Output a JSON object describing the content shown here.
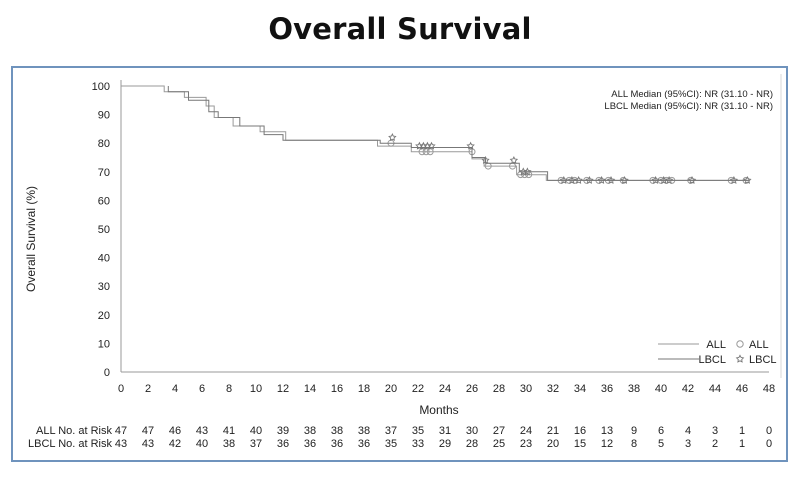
{
  "title": "Overall Survival",
  "chart_data": {
    "type": "line",
    "subtype": "kaplan-meier",
    "title": "Overall Survival",
    "xlabel": "Months",
    "ylabel": "Overall Survival (%)",
    "xlim": [
      0,
      48
    ],
    "ylim": [
      0,
      100
    ],
    "xticks": [
      0,
      2,
      4,
      6,
      8,
      10,
      12,
      14,
      16,
      18,
      20,
      22,
      24,
      26,
      28,
      30,
      32,
      34,
      36,
      38,
      40,
      42,
      44,
      46,
      48
    ],
    "yticks": [
      0,
      10,
      20,
      30,
      40,
      50,
      60,
      70,
      80,
      90,
      100
    ],
    "grid": false,
    "annotations": [
      "ALL Median (95%CI): NR (31.10 - NR)",
      "LBCL Median (95%CI): NR (31.10 - NR)"
    ],
    "legend": {
      "placement": "bottom-right",
      "entries": [
        {
          "line_label": "ALL",
          "marker_label": "ALL"
        },
        {
          "line_label": "LBCL",
          "marker_label": "LBCL"
        }
      ]
    },
    "series": [
      {
        "name": "ALL",
        "color": "#9a9a9a",
        "steps": [
          [
            0,
            100
          ],
          [
            3.2,
            100
          ],
          [
            3.2,
            98
          ],
          [
            4.7,
            98
          ],
          [
            4.7,
            96
          ],
          [
            6.3,
            96
          ],
          [
            6.3,
            93
          ],
          [
            6.9,
            93
          ],
          [
            6.9,
            89
          ],
          [
            8.3,
            89
          ],
          [
            8.3,
            86
          ],
          [
            10.3,
            86
          ],
          [
            10.3,
            84
          ],
          [
            12.2,
            84
          ],
          [
            12.2,
            81
          ],
          [
            19.0,
            81
          ],
          [
            19.0,
            79
          ],
          [
            21.5,
            79
          ],
          [
            21.5,
            77
          ],
          [
            26.0,
            77
          ],
          [
            26.0,
            74.5
          ],
          [
            26.9,
            74.5
          ],
          [
            26.9,
            72
          ],
          [
            29.3,
            72
          ],
          [
            29.3,
            69
          ],
          [
            31.5,
            69
          ],
          [
            31.5,
            67
          ],
          [
            46.5,
            67
          ]
        ],
        "censored": [
          [
            20.0,
            80
          ],
          [
            22.3,
            77
          ],
          [
            22.6,
            77
          ],
          [
            22.9,
            77
          ],
          [
            26.0,
            77
          ],
          [
            27.2,
            72
          ],
          [
            29.0,
            72
          ],
          [
            29.6,
            69
          ],
          [
            29.9,
            69
          ],
          [
            30.2,
            69
          ],
          [
            32.6,
            67
          ],
          [
            33.2,
            67
          ],
          [
            33.6,
            67
          ],
          [
            34.5,
            67
          ],
          [
            35.4,
            67
          ],
          [
            36.1,
            67
          ],
          [
            37.2,
            67
          ],
          [
            39.4,
            67
          ],
          [
            40.0,
            67
          ],
          [
            40.4,
            67
          ],
          [
            40.8,
            67
          ],
          [
            42.2,
            67
          ],
          [
            45.2,
            67
          ],
          [
            46.3,
            67
          ]
        ]
      },
      {
        "name": "LBCL",
        "color": "#777777",
        "steps": [
          [
            3.5,
            100
          ],
          [
            3.5,
            98
          ],
          [
            5.0,
            98
          ],
          [
            5.0,
            95
          ],
          [
            6.5,
            95
          ],
          [
            6.5,
            91
          ],
          [
            7.2,
            91
          ],
          [
            7.2,
            89
          ],
          [
            8.8,
            89
          ],
          [
            8.8,
            86
          ],
          [
            10.6,
            86
          ],
          [
            10.6,
            83
          ],
          [
            12.0,
            83
          ],
          [
            12.0,
            81
          ],
          [
            19.2,
            81
          ],
          [
            19.2,
            80
          ],
          [
            21.5,
            80
          ],
          [
            21.5,
            78.5
          ],
          [
            26.0,
            78.5
          ],
          [
            26.0,
            75
          ],
          [
            27.0,
            75
          ],
          [
            27.0,
            73
          ],
          [
            29.5,
            73
          ],
          [
            29.5,
            70
          ],
          [
            31.6,
            70
          ],
          [
            31.6,
            67
          ],
          [
            46.5,
            67
          ]
        ],
        "censored": [
          [
            20.1,
            82
          ],
          [
            22.1,
            79
          ],
          [
            22.4,
            79
          ],
          [
            22.7,
            79
          ],
          [
            23.0,
            79
          ],
          [
            25.9,
            79
          ],
          [
            27.0,
            74
          ],
          [
            29.1,
            74
          ],
          [
            29.8,
            70
          ],
          [
            30.1,
            70
          ],
          [
            32.8,
            67
          ],
          [
            33.4,
            67
          ],
          [
            33.9,
            67
          ],
          [
            34.7,
            67
          ],
          [
            35.6,
            67
          ],
          [
            36.3,
            67
          ],
          [
            37.3,
            67
          ],
          [
            39.6,
            67
          ],
          [
            40.2,
            67
          ],
          [
            40.6,
            67
          ],
          [
            42.3,
            67
          ],
          [
            45.4,
            67
          ],
          [
            46.4,
            67
          ]
        ]
      }
    ],
    "risk_table": {
      "times": [
        0,
        2,
        4,
        6,
        8,
        10,
        12,
        14,
        16,
        18,
        20,
        22,
        24,
        26,
        28,
        30,
        32,
        34,
        36,
        38,
        40,
        42,
        44,
        46,
        48
      ],
      "rows": [
        {
          "label": "ALL No. at Risk",
          "values": [
            47,
            47,
            46,
            43,
            41,
            40,
            39,
            38,
            38,
            38,
            37,
            35,
            31,
            30,
            27,
            24,
            21,
            16,
            13,
            9,
            6,
            4,
            3,
            1,
            0
          ]
        },
        {
          "label": "LBCL No. at Risk",
          "values": [
            43,
            43,
            42,
            40,
            38,
            37,
            36,
            36,
            36,
            36,
            35,
            33,
            29,
            28,
            25,
            23,
            20,
            15,
            12,
            8,
            5,
            3,
            2,
            1,
            0
          ]
        }
      ]
    }
  }
}
